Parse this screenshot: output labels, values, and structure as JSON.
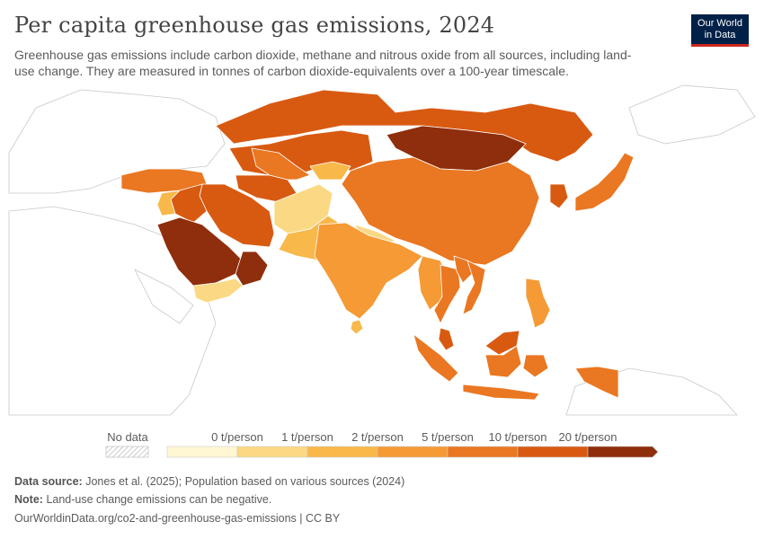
{
  "title": "Per capita greenhouse gas emissions, 2024",
  "subtitle": "Greenhouse gas emissions include carbon dioxide, methane and nitrous oxide from all sources, including land-use change. They are measured in tonnes of carbon dioxide-equivalents over a 100-year timescale.",
  "logo": {
    "line1": "Our World",
    "line2": "in Data",
    "bg": "#002147",
    "accent": "#ce261e"
  },
  "legend": {
    "no_data_label": "No data",
    "labels": [
      "0 t/person",
      "1 t/person",
      "2 t/person",
      "5 t/person",
      "10 t/person",
      "20 t/person"
    ],
    "colors": [
      "#fff7d3",
      "#fbd883",
      "#f8b84a",
      "#f59a35",
      "#ea7721",
      "#d85a11",
      "#8f2e0c"
    ]
  },
  "regions": [
    {
      "name": "Mongolia",
      "bin": 6
    },
    {
      "name": "Saudi Arabia",
      "bin": 6
    },
    {
      "name": "Oman",
      "bin": 6
    },
    {
      "name": "Kazakhstan",
      "bin": 5
    },
    {
      "name": "Russia",
      "bin": 5
    },
    {
      "name": "Iran",
      "bin": 5
    },
    {
      "name": "Turkmenistan",
      "bin": 5
    },
    {
      "name": "Iraq",
      "bin": 5
    },
    {
      "name": "Malaysia",
      "bin": 5
    },
    {
      "name": "South Korea",
      "bin": 5
    },
    {
      "name": "China",
      "bin": 4
    },
    {
      "name": "Japan",
      "bin": 4
    },
    {
      "name": "Turkey",
      "bin": 4
    },
    {
      "name": "Uzbekistan",
      "bin": 4
    },
    {
      "name": "Thailand",
      "bin": 4
    },
    {
      "name": "Vietnam",
      "bin": 4
    },
    {
      "name": "Indonesia",
      "bin": 4
    },
    {
      "name": "Laos",
      "bin": 4
    },
    {
      "name": "Papua New Guinea",
      "bin": 4
    },
    {
      "name": "India",
      "bin": 3
    },
    {
      "name": "Myanmar",
      "bin": 3
    },
    {
      "name": "Philippines",
      "bin": 3
    },
    {
      "name": "Sri Lanka",
      "bin": 2
    },
    {
      "name": "Pakistan",
      "bin": 2
    },
    {
      "name": "Syria",
      "bin": 2
    },
    {
      "name": "Kyrgyzstan",
      "bin": 2
    },
    {
      "name": "Afghanistan",
      "bin": 1
    },
    {
      "name": "Yemen",
      "bin": 1
    },
    {
      "name": "Nepal",
      "bin": 1
    }
  ],
  "footer": {
    "source_label": "Data source:",
    "source_text": "Jones et al. (2025); Population based on various sources (2024)",
    "note_label": "Note:",
    "note_text": "Land-use change emissions can be negative.",
    "url": "OurWorldinData.org/co2-and-greenhouse-gas-emissions | CC BY"
  }
}
